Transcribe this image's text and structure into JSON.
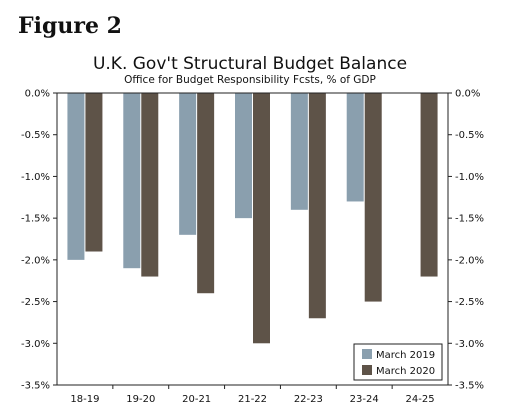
{
  "figure_label": "Figure 2",
  "chart_data": {
    "type": "bar",
    "title": "U.K. Gov't Structural Budget Balance",
    "subtitle": "Office for Budget Responsibility Fcsts, % of GDP",
    "xlabel": "",
    "ylabel": "",
    "categories": [
      "18-19",
      "19-20",
      "20-21",
      "21-22",
      "22-23",
      "23-24",
      "24-25"
    ],
    "series": [
      {
        "name": "March 2019",
        "color": "#8a9fae",
        "values": [
          -2.0,
          -2.1,
          -1.7,
          -1.5,
          -1.4,
          -1.3,
          null
        ]
      },
      {
        "name": "March 2020",
        "color": "#5e5348",
        "values": [
          -1.9,
          -2.2,
          -2.4,
          -3.0,
          -2.7,
          -2.5,
          -2.2
        ]
      }
    ],
    "ylim": [
      -3.5,
      0.0
    ],
    "yticks": [
      0.0,
      -0.5,
      -1.0,
      -1.5,
      -2.0,
      -2.5,
      -3.0,
      -3.5
    ],
    "ytick_labels": [
      "0.0%",
      "-0.5%",
      "-1.0%",
      "-1.5%",
      "-2.0%",
      "-2.5%",
      "-3.0%",
      "-3.5%"
    ],
    "grid": false,
    "legend_position": "bottom-right",
    "dual_y_axis": true
  }
}
